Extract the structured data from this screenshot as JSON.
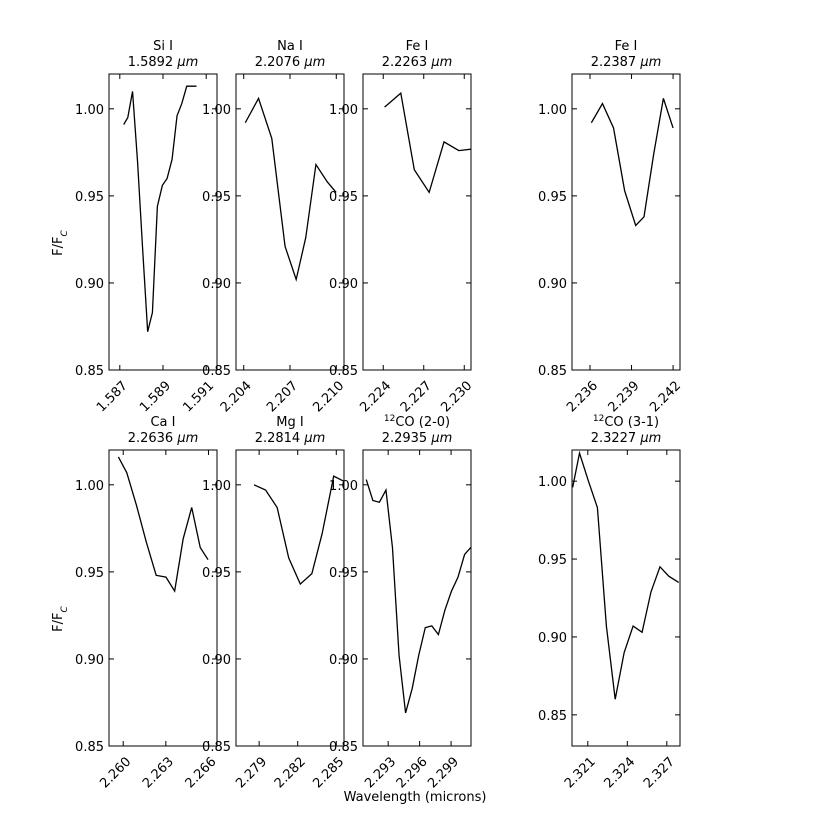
{
  "figure": {
    "xlabel": "Wavelength (microns)",
    "ylabel": "F/F",
    "ylabel_sub": "C"
  },
  "chart_data": [
    {
      "type": "line",
      "title_line1": "Si I",
      "title_line2": "1.5892 ",
      "title_unit": "μm",
      "xlim": [
        1.5865,
        1.5915
      ],
      "ylim": [
        0.85,
        1.02
      ],
      "xticks": [
        1.587,
        1.589,
        1.591
      ],
      "xtick_labels": [
        "1.587",
        "1.589",
        "1.591"
      ],
      "yticks": [
        0.85,
        0.9,
        0.95,
        1.0
      ],
      "ytick_labels": [
        "0.85",
        "0.90",
        "0.95",
        "1.00"
      ],
      "x": [
        1.58718,
        1.58737,
        1.58759,
        1.58782,
        1.58805,
        1.58829,
        1.58851,
        1.58874,
        1.58897,
        1.58919,
        1.58942,
        1.58965,
        1.58987,
        1.5901,
        1.59033,
        1.59055
      ],
      "y": [
        0.991,
        0.995,
        1.01,
        0.97,
        0.921,
        0.872,
        0.883,
        0.944,
        0.956,
        0.96,
        0.971,
        0.996,
        1.003,
        1.013,
        1.013,
        1.013
      ]
    },
    {
      "type": "line",
      "title_line1": "Na I",
      "title_line2": "2.2076 ",
      "title_unit": "μm",
      "xlim": [
        2.2035,
        2.2105
      ],
      "ylim": [
        0.85,
        1.02
      ],
      "xticks": [
        2.204,
        2.207,
        2.21
      ],
      "xtick_labels": [
        "2.204",
        "2.207",
        "2.210"
      ],
      "yticks": [
        0.85,
        0.9,
        0.95,
        1.0
      ],
      "ytick_labels": [
        "0.85",
        "0.90",
        "0.95",
        "1.00"
      ],
      "x": [
        2.2041,
        2.20496,
        2.20582,
        2.20668,
        2.2074,
        2.20802,
        2.20868,
        2.20942,
        2.20999
      ],
      "y": [
        0.992,
        1.006,
        0.983,
        0.921,
        0.902,
        0.926,
        0.968,
        0.958,
        0.952
      ]
    },
    {
      "type": "line",
      "title_line1": "Fe I",
      "title_line2": "2.2263 ",
      "title_unit": "μm",
      "xlim": [
        2.2225,
        2.2305
      ],
      "ylim": [
        0.85,
        1.02
      ],
      "xticks": [
        2.224,
        2.227,
        2.23
      ],
      "xtick_labels": [
        "2.224",
        "2.227",
        "2.230"
      ],
      "yticks": [
        0.85,
        0.9,
        0.95,
        1.0
      ],
      "ytick_labels": [
        "0.85",
        "0.90",
        "0.95",
        "1.00"
      ],
      "x": [
        2.2241,
        2.2253,
        2.2263,
        2.2274,
        2.2285,
        2.2296,
        2.2307
      ],
      "y": [
        1.001,
        1.009,
        0.965,
        0.952,
        0.981,
        0.976,
        0.977
      ]
    },
    {
      "type": "line",
      "title_line1": "Fe I",
      "title_line2": "2.2387 ",
      "title_unit": "μm",
      "xlim": [
        2.2347,
        2.2425
      ],
      "ylim": [
        0.85,
        1.02
      ],
      "xticks": [
        2.236,
        2.239,
        2.242
      ],
      "xtick_labels": [
        "2.236",
        "2.239",
        "2.242"
      ],
      "yticks": [
        0.85,
        0.9,
        0.95,
        1.0
      ],
      "ytick_labels": [
        "0.85",
        "0.90",
        "0.95",
        "1.00"
      ],
      "x": [
        2.2361,
        2.2369,
        2.2377,
        2.2385,
        2.2393,
        2.2399,
        2.2406,
        2.2413,
        2.242
      ],
      "y": [
        0.992,
        1.003,
        0.989,
        0.953,
        0.933,
        0.938,
        0.974,
        1.006,
        0.989
      ]
    },
    {
      "type": "line",
      "title_line1": "Ca I",
      "title_line2": "2.2636 ",
      "title_unit": "μm",
      "xlim": [
        2.259,
        2.2666
      ],
      "ylim": [
        0.85,
        1.02
      ],
      "xticks": [
        2.26,
        2.263,
        2.266
      ],
      "xtick_labels": [
        "2.260",
        "2.263",
        "2.266"
      ],
      "yticks": [
        0.85,
        0.9,
        0.95,
        1.0
      ],
      "ytick_labels": [
        "0.85",
        "0.90",
        "0.95",
        "1.00"
      ],
      "x": [
        2.25966,
        2.26025,
        2.26094,
        2.26163,
        2.26232,
        2.26301,
        2.26362,
        2.26422,
        2.26482,
        2.26542,
        2.26597
      ],
      "y": [
        1.016,
        1.007,
        0.988,
        0.967,
        0.948,
        0.947,
        0.939,
        0.969,
        0.987,
        0.964,
        0.957
      ]
    },
    {
      "type": "line",
      "title_line1": "Mg I",
      "title_line2": "2.2814 ",
      "title_unit": "μm",
      "xlim": [
        2.2772,
        2.2856
      ],
      "ylim": [
        0.85,
        1.02
      ],
      "xticks": [
        2.279,
        2.282,
        2.285
      ],
      "xtick_labels": [
        "2.279",
        "2.282",
        "2.285"
      ],
      "yticks": [
        0.85,
        0.9,
        0.95,
        1.0
      ],
      "ytick_labels": [
        "0.85",
        "0.90",
        "0.95",
        "1.00"
      ],
      "x": [
        2.2786,
        2.2795,
        2.2804,
        2.2813,
        2.2822,
        2.2831,
        2.2839,
        2.2848,
        2.2856
      ],
      "y": [
        1.0,
        0.997,
        0.987,
        0.958,
        0.943,
        0.949,
        0.972,
        1.005,
        1.002
      ]
    },
    {
      "type": "line",
      "title_line1": "CO (2-0)",
      "title_sup": "12",
      "title_line2": "2.2935 ",
      "title_unit": "μm",
      "xlim": [
        2.2906,
        2.3009
      ],
      "ylim": [
        0.85,
        1.02
      ],
      "xticks": [
        2.293,
        2.296,
        2.299
      ],
      "xtick_labels": [
        "2.293",
        "2.296",
        "2.299"
      ],
      "yticks": [
        0.85,
        0.9,
        0.95,
        1.0
      ],
      "ytick_labels": [
        "0.85",
        "0.90",
        "0.95",
        "1.00"
      ],
      "x": [
        2.29091,
        2.29154,
        2.29216,
        2.29279,
        2.29341,
        2.29404,
        2.29466,
        2.29529,
        2.29591,
        2.29654,
        2.29716,
        2.29779,
        2.29841,
        2.29904,
        2.29966,
        2.30029,
        2.30087
      ],
      "y": [
        1.003,
        0.991,
        0.99,
        0.997,
        0.964,
        0.902,
        0.869,
        0.883,
        0.902,
        0.918,
        0.919,
        0.914,
        0.928,
        0.939,
        0.947,
        0.96,
        0.964
      ]
    },
    {
      "type": "line",
      "title_line1": "CO (3-1)",
      "title_sup": "12",
      "title_line2": "2.3227 ",
      "title_unit": "μm",
      "xlim": [
        2.3198,
        2.328
      ],
      "ylim": [
        0.83,
        1.02
      ],
      "xticks": [
        2.321,
        2.324,
        2.327
      ],
      "xtick_labels": [
        "2.321",
        "2.324",
        "2.327"
      ],
      "yticks": [
        0.85,
        0.9,
        0.95,
        1.0
      ],
      "ytick_labels": [
        "0.85",
        "0.90",
        "0.95",
        "1.00"
      ],
      "x": [
        2.31985,
        2.32037,
        2.32105,
        2.32173,
        2.32241,
        2.32308,
        2.32376,
        2.32444,
        2.32512,
        2.3258,
        2.32648,
        2.32715,
        2.3279
      ],
      "y": [
        0.996,
        1.018,
        1.0,
        0.983,
        0.907,
        0.86,
        0.89,
        0.907,
        0.903,
        0.929,
        0.945,
        0.939,
        0.935
      ]
    }
  ]
}
